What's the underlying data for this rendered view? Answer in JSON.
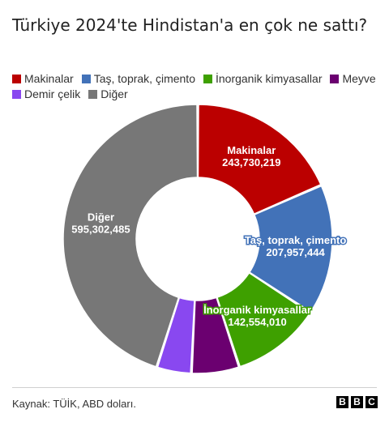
{
  "title": "Türkiye 2024'te Hindistan'a en çok ne sattı?",
  "legend": [
    {
      "label": "Makinalar",
      "color": "#bb0000"
    },
    {
      "label": "Taş, toprak, çimento",
      "color": "#4272b8"
    },
    {
      "label": "İnorganik kimyasallar",
      "color": "#3ea000"
    },
    {
      "label": "Meyve",
      "color": "#6b0070"
    },
    {
      "label": "Demir çelik",
      "color": "#8948f0"
    },
    {
      "label": "Diğer",
      "color": "#777777"
    }
  ],
  "chart_data": {
    "type": "pie",
    "hole": "donut",
    "title": "Türkiye 2024'te Hindistan'a en çok ne sattı?",
    "slices": [
      {
        "label": "Makinalar",
        "value": 243730219,
        "value_label": "243,730,219",
        "color": "#bb0000",
        "labeled": true
      },
      {
        "label": "Taş, toprak, çimento",
        "value": 207957444,
        "value_label": "207,957,444",
        "color": "#4272b8",
        "labeled": true
      },
      {
        "label": "İnorganik kimyasallar",
        "value": 142554010,
        "value_label": "142,554,010",
        "color": "#3ea000",
        "labeled": true
      },
      {
        "label": "Meyve",
        "value": 76000000,
        "value_label": "",
        "color": "#6b0070",
        "labeled": false
      },
      {
        "label": "Demir çelik",
        "value": 55000000,
        "value_label": "",
        "color": "#8948f0",
        "labeled": false
      },
      {
        "label": "Diğer",
        "value": 595302485,
        "value_label": "595,302,485",
        "color": "#777777",
        "labeled": true
      }
    ]
  },
  "source": "Kaynak: TÜİK, ABD doları.",
  "brand": [
    "B",
    "B",
    "C"
  ]
}
